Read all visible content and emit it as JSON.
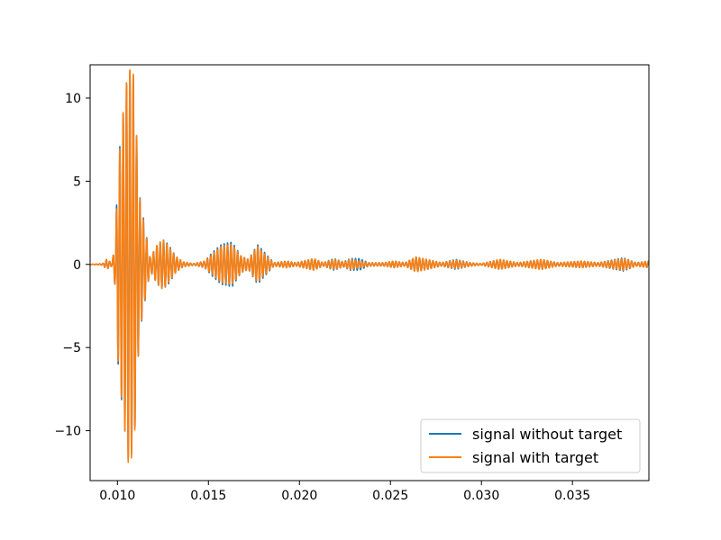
{
  "chart_data": {
    "type": "line",
    "title": "",
    "xlabel": "",
    "ylabel": "",
    "xlim": [
      0.0085,
      0.0392
    ],
    "ylim": [
      -13,
      12
    ],
    "grid": false,
    "legend_position": "lower-right",
    "x_ticks": [
      {
        "value": 0.01,
        "label": "0.010"
      },
      {
        "value": 0.015,
        "label": "0.015"
      },
      {
        "value": 0.02,
        "label": "0.020"
      },
      {
        "value": 0.025,
        "label": "0.025"
      },
      {
        "value": 0.03,
        "label": "0.030"
      },
      {
        "value": 0.035,
        "label": "0.035"
      }
    ],
    "y_ticks": [
      {
        "value": 10,
        "label": "10"
      },
      {
        "value": 5,
        "label": "5"
      },
      {
        "value": 0,
        "label": "0"
      },
      {
        "value": -5,
        "label": "−5"
      },
      {
        "value": -10,
        "label": "−10"
      }
    ],
    "series": [
      {
        "name": "signal without target",
        "color": "#1f77b4",
        "carrier_period": 0.000185,
        "envelope": [
          [
            0.0085,
            0
          ],
          [
            0.0092,
            0.05
          ],
          [
            0.0094,
            0.3
          ],
          [
            0.0097,
            0.1
          ],
          [
            0.0099,
            1.5
          ],
          [
            0.01,
            5.6
          ],
          [
            0.0103,
            9.0
          ],
          [
            0.0106,
            11.8
          ],
          [
            0.0109,
            11.3
          ],
          [
            0.0112,
            4.3
          ],
          [
            0.0115,
            2.3
          ],
          [
            0.0118,
            0.4
          ],
          [
            0.0122,
            1.2
          ],
          [
            0.0125,
            1.5
          ],
          [
            0.0128,
            1.2
          ],
          [
            0.0132,
            0.5
          ],
          [
            0.0136,
            0.15
          ],
          [
            0.0142,
            0.05
          ],
          [
            0.0148,
            0.2
          ],
          [
            0.0152,
            0.7
          ],
          [
            0.0157,
            1.2
          ],
          [
            0.0163,
            1.35
          ],
          [
            0.0168,
            0.5
          ],
          [
            0.0172,
            0.3
          ],
          [
            0.0177,
            1.2
          ],
          [
            0.0181,
            0.7
          ],
          [
            0.0186,
            0.1
          ],
          [
            0.0193,
            0.2
          ],
          [
            0.0198,
            0.1
          ],
          [
            0.0208,
            0.35
          ],
          [
            0.0213,
            0.1
          ],
          [
            0.0219,
            0.35
          ],
          [
            0.0224,
            0.15
          ],
          [
            0.0228,
            0.35
          ],
          [
            0.0233,
            0.35
          ],
          [
            0.0238,
            0.1
          ],
          [
            0.0246,
            0.1
          ],
          [
            0.0252,
            0.2
          ],
          [
            0.0258,
            0.1
          ],
          [
            0.0264,
            0.45
          ],
          [
            0.027,
            0.3
          ],
          [
            0.0278,
            0.1
          ],
          [
            0.0286,
            0.3
          ],
          [
            0.0294,
            0.1
          ],
          [
            0.03,
            0.05
          ],
          [
            0.031,
            0.3
          ],
          [
            0.032,
            0.1
          ],
          [
            0.0333,
            0.3
          ],
          [
            0.0342,
            0.1
          ],
          [
            0.0355,
            0.2
          ],
          [
            0.0364,
            0.1
          ],
          [
            0.0378,
            0.4
          ],
          [
            0.0385,
            0.1
          ],
          [
            0.0392,
            0.2
          ]
        ]
      },
      {
        "name": "signal with target",
        "color": "#ff7f0e",
        "carrier_period": 0.000185,
        "envelope": [
          [
            0.0085,
            0
          ],
          [
            0.0092,
            0.05
          ],
          [
            0.0094,
            0.3
          ],
          [
            0.0097,
            0.1
          ],
          [
            0.0099,
            1.5
          ],
          [
            0.01,
            5.4
          ],
          [
            0.0103,
            9.0
          ],
          [
            0.0106,
            12.0
          ],
          [
            0.0109,
            11.4
          ],
          [
            0.0112,
            4.2
          ],
          [
            0.0115,
            2.2
          ],
          [
            0.0118,
            0.4
          ],
          [
            0.0122,
            1.2
          ],
          [
            0.0125,
            1.5
          ],
          [
            0.0128,
            1.1
          ],
          [
            0.0132,
            0.5
          ],
          [
            0.0136,
            0.15
          ],
          [
            0.0142,
            0.05
          ],
          [
            0.0148,
            0.2
          ],
          [
            0.0152,
            0.6
          ],
          [
            0.0157,
            1.1
          ],
          [
            0.0163,
            1.2
          ],
          [
            0.0168,
            0.5
          ],
          [
            0.0172,
            0.3
          ],
          [
            0.0177,
            1.1
          ],
          [
            0.0181,
            0.6
          ],
          [
            0.0186,
            0.1
          ],
          [
            0.0193,
            0.2
          ],
          [
            0.0198,
            0.1
          ],
          [
            0.0208,
            0.35
          ],
          [
            0.0213,
            0.1
          ],
          [
            0.0219,
            0.3
          ],
          [
            0.0224,
            0.15
          ],
          [
            0.0228,
            0.3
          ],
          [
            0.0233,
            0.2
          ],
          [
            0.0238,
            0.1
          ],
          [
            0.0246,
            0.1
          ],
          [
            0.0252,
            0.2
          ],
          [
            0.0258,
            0.1
          ],
          [
            0.0264,
            0.45
          ],
          [
            0.027,
            0.3
          ],
          [
            0.0278,
            0.1
          ],
          [
            0.0286,
            0.25
          ],
          [
            0.0294,
            0.1
          ],
          [
            0.03,
            0.05
          ],
          [
            0.031,
            0.3
          ],
          [
            0.032,
            0.1
          ],
          [
            0.0333,
            0.3
          ],
          [
            0.0342,
            0.1
          ],
          [
            0.0355,
            0.2
          ],
          [
            0.0364,
            0.1
          ],
          [
            0.0378,
            0.35
          ],
          [
            0.0385,
            0.1
          ],
          [
            0.0392,
            0.2
          ]
        ]
      }
    ]
  }
}
